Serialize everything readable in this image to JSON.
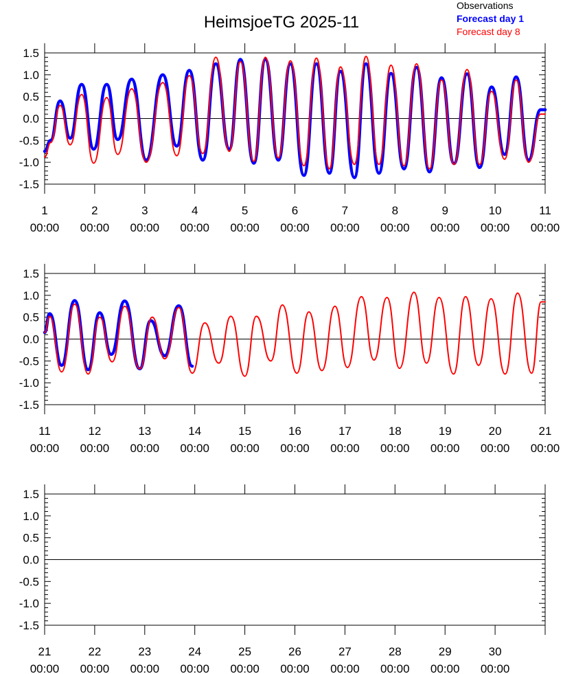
{
  "title": "HeimsjoeTG 2025-11",
  "legend": [
    {
      "label": "Observations",
      "color": "#000000",
      "bold": false
    },
    {
      "label": "Forecast day 1",
      "color": "#0000ff",
      "bold": true
    },
    {
      "label": "Forecast day 8",
      "color": "#ff0000",
      "bold": false
    }
  ],
  "colors": {
    "observations": "#000000",
    "forecast_day_1": "#0000ff",
    "forecast_day_8": "#ff0000"
  },
  "chart_data": [
    {
      "type": "line",
      "xlim": [
        1,
        11
      ],
      "ylim": [
        -1.5,
        1.5
      ],
      "yticks": [
        "1.5",
        "1.0",
        "0.5",
        "0.0",
        "-0.5",
        "-1.0",
        "-1.5"
      ],
      "xticks": [
        {
          "day": "1",
          "time": "00:00"
        },
        {
          "day": "2",
          "time": "00:00"
        },
        {
          "day": "3",
          "time": "00:00"
        },
        {
          "day": "4",
          "time": "00:00"
        },
        {
          "day": "5",
          "time": "00:00"
        },
        {
          "day": "6",
          "time": "00:00"
        },
        {
          "day": "7",
          "time": "00:00"
        },
        {
          "day": "8",
          "time": "00:00"
        },
        {
          "day": "9",
          "time": "00:00"
        },
        {
          "day": "10",
          "time": "00:00"
        },
        {
          "day": "11",
          "time": "00:00"
        }
      ],
      "series": [
        {
          "name": "Forecast day 1",
          "color": "#0000ff",
          "x": [
            1.0,
            1.12,
            1.31,
            1.51,
            1.74,
            1.98,
            2.24,
            2.46,
            2.74,
            3.03,
            3.36,
            3.64,
            3.89,
            4.16,
            4.42,
            4.69,
            4.91,
            5.18,
            5.41,
            5.67,
            5.91,
            6.18,
            6.43,
            6.69,
            6.91,
            7.19,
            7.42,
            7.68,
            7.92,
            8.18,
            8.43,
            8.69,
            8.93,
            9.18,
            9.44,
            9.69,
            9.93,
            10.19,
            10.42,
            10.67,
            10.91,
            11.0
          ],
          "y": [
            -0.75,
            -0.5,
            0.4,
            -0.45,
            0.78,
            -0.7,
            0.78,
            -0.48,
            0.9,
            -0.95,
            1.0,
            -0.63,
            1.1,
            -0.95,
            1.25,
            -0.7,
            1.35,
            -1.02,
            1.35,
            -0.95,
            1.25,
            -1.3,
            1.25,
            -1.25,
            1.08,
            -1.35,
            1.25,
            -1.25,
            1.03,
            -1.15,
            1.17,
            -1.22,
            0.93,
            -1.03,
            1.02,
            -1.12,
            0.72,
            -0.82,
            0.95,
            -0.95,
            0.2,
            0.2
          ]
        },
        {
          "name": "Forecast day 8",
          "color": "#ff0000",
          "x": [
            1.0,
            1.12,
            1.31,
            1.51,
            1.74,
            1.98,
            2.24,
            2.46,
            2.74,
            3.03,
            3.36,
            3.64,
            3.89,
            4.16,
            4.42,
            4.69,
            4.91,
            5.18,
            5.41,
            5.67,
            5.91,
            6.18,
            6.43,
            6.69,
            6.91,
            7.19,
            7.42,
            7.68,
            7.92,
            8.18,
            8.43,
            8.69,
            8.93,
            9.18,
            9.44,
            9.69,
            9.93,
            10.19,
            10.42,
            10.67,
            10.91,
            11.0
          ],
          "y": [
            -0.88,
            -0.55,
            0.3,
            -0.6,
            0.55,
            -1.02,
            0.48,
            -0.82,
            0.68,
            -1.0,
            0.82,
            -0.85,
            0.98,
            -0.8,
            1.4,
            -0.75,
            1.3,
            -0.98,
            1.4,
            -0.9,
            1.32,
            -1.08,
            1.38,
            -1.15,
            1.18,
            -1.05,
            1.42,
            -1.05,
            1.22,
            -1.08,
            1.25,
            -1.15,
            0.88,
            -1.05,
            1.12,
            -1.05,
            0.62,
            -0.93,
            0.88,
            -1.0,
            0.1,
            0.1
          ]
        }
      ]
    },
    {
      "type": "line",
      "xlim": [
        11,
        21
      ],
      "ylim": [
        -1.5,
        1.5
      ],
      "yticks": [
        "1.5",
        "1.0",
        "0.5",
        "0.0",
        "-0.5",
        "-1.0",
        "-1.5"
      ],
      "xticks": [
        {
          "day": "11",
          "time": "00:00"
        },
        {
          "day": "12",
          "time": "00:00"
        },
        {
          "day": "13",
          "time": "00:00"
        },
        {
          "day": "14",
          "time": "00:00"
        },
        {
          "day": "15",
          "time": "00:00"
        },
        {
          "day": "16",
          "time": "00:00"
        },
        {
          "day": "17",
          "time": "00:00"
        },
        {
          "day": "18",
          "time": "00:00"
        },
        {
          "day": "19",
          "time": "00:00"
        },
        {
          "day": "20",
          "time": "00:00"
        },
        {
          "day": "21",
          "time": "00:00"
        }
      ],
      "series": [
        {
          "name": "Forecast day 1",
          "color": "#0000ff",
          "x": [
            11.0,
            11.1,
            11.34,
            11.6,
            11.87,
            12.1,
            12.33,
            12.6,
            12.9,
            13.12,
            13.4,
            13.68,
            13.95
          ],
          "y": [
            0.15,
            0.58,
            -0.6,
            0.88,
            -0.7,
            0.6,
            -0.35,
            0.87,
            -0.68,
            0.42,
            -0.38,
            0.76,
            -0.62
          ]
        },
        {
          "name": "Forecast day 8",
          "color": "#ff0000",
          "x": [
            11.0,
            11.1,
            11.34,
            11.6,
            11.87,
            12.1,
            12.35,
            12.6,
            12.9,
            13.15,
            13.4,
            13.68,
            13.95,
            14.2,
            14.48,
            14.72,
            15.0,
            15.23,
            15.52,
            15.75,
            16.04,
            16.28,
            16.54,
            16.8,
            17.05,
            17.33,
            17.58,
            17.84,
            18.09,
            18.38,
            18.63,
            18.88,
            19.17,
            19.41,
            19.67,
            19.92,
            20.2,
            20.45,
            20.73,
            20.92,
            21.0
          ],
          "y": [
            0.15,
            0.52,
            -0.75,
            0.8,
            -0.8,
            0.5,
            -0.52,
            0.75,
            -0.68,
            0.5,
            -0.45,
            0.72,
            -0.78,
            0.37,
            -0.55,
            0.52,
            -0.85,
            0.52,
            -0.5,
            0.78,
            -0.78,
            0.62,
            -0.72,
            0.75,
            -0.65,
            0.97,
            -0.48,
            0.95,
            -0.67,
            1.07,
            -0.55,
            0.95,
            -0.8,
            0.97,
            -0.6,
            0.92,
            -0.8,
            1.05,
            -0.78,
            0.85,
            0.85
          ]
        }
      ]
    },
    {
      "type": "line",
      "xlim": [
        21,
        31
      ],
      "ylim": [
        -1.5,
        1.5
      ],
      "yticks": [
        "1.5",
        "1.0",
        "0.5",
        "0.0",
        "-0.5",
        "-1.0",
        "-1.5"
      ],
      "xticks": [
        {
          "day": "21",
          "time": "00:00"
        },
        {
          "day": "22",
          "time": "00:00"
        },
        {
          "day": "23",
          "time": "00:00"
        },
        {
          "day": "24",
          "time": "00:00"
        },
        {
          "day": "25",
          "time": "00:00"
        },
        {
          "day": "26",
          "time": "00:00"
        },
        {
          "day": "27",
          "time": "00:00"
        },
        {
          "day": "28",
          "time": "00:00"
        },
        {
          "day": "29",
          "time": "00:00"
        },
        {
          "day": "30",
          "time": "00:00"
        }
      ],
      "series": []
    }
  ]
}
